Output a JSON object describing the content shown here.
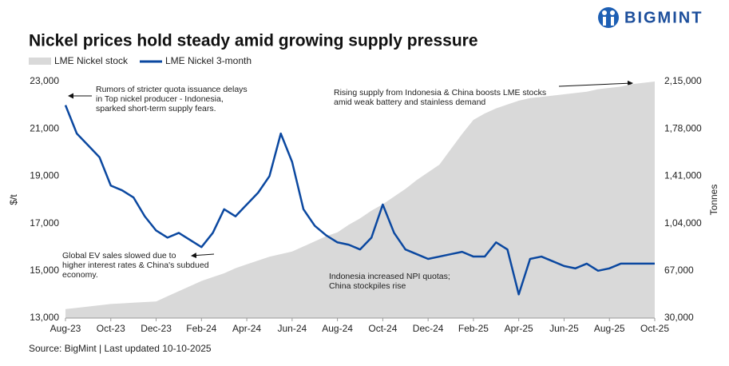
{
  "brand": "BIGMINT",
  "chart_data": {
    "type": "line",
    "title": "Nickel prices hold steady amid growing supply pressure",
    "categories": [
      "Aug-23",
      null,
      null,
      null,
      "Oct-23",
      null,
      null,
      null,
      "Dec-23",
      null,
      null,
      null,
      "Feb-24",
      null,
      null,
      null,
      "Apr-24",
      null,
      null,
      null,
      "Jun-24",
      null,
      null,
      null,
      "Aug-24",
      null,
      null,
      null,
      "Oct-24",
      null,
      null,
      null,
      "Dec-24",
      null,
      null,
      null,
      "Feb-25",
      null,
      null,
      null,
      "Apr-25",
      null,
      null,
      null,
      "Jun-25",
      null,
      null,
      null,
      "Aug-25",
      null,
      null,
      null,
      "Oct-25"
    ],
    "series": [
      {
        "name": "LME Nickel stock",
        "type": "area",
        "color": "#d9d9d9",
        "axis": "y2",
        "values": [
          37000,
          38000,
          39000,
          40000,
          41000,
          41500,
          42000,
          42500,
          43000,
          47000,
          51000,
          55000,
          59000,
          62000,
          65000,
          69000,
          72000,
          75000,
          78000,
          80000,
          82000,
          86000,
          90000,
          94000,
          97000,
          103000,
          108000,
          114000,
          119000,
          125000,
          131000,
          138000,
          144000,
          150000,
          162000,
          174000,
          185000,
          190000,
          194000,
          197000,
          200000,
          202000,
          203000,
          204000,
          205000,
          206000,
          207000,
          209000,
          210000,
          211000,
          213000,
          214000,
          215000
        ]
      },
      {
        "name": "LME Nickel 3-month",
        "type": "line",
        "color": "#0b48a0",
        "axis": "y",
        "values": [
          22000,
          20800,
          20300,
          19800,
          18600,
          18400,
          18100,
          17300,
          16700,
          16400,
          16600,
          16300,
          16000,
          16600,
          17600,
          17300,
          17800,
          18300,
          19000,
          20800,
          19600,
          17600,
          16900,
          16500,
          16200,
          16100,
          15900,
          16400,
          17800,
          16600,
          15900,
          15700,
          15500,
          15600,
          15700,
          15800,
          15600,
          15600,
          16200,
          15900,
          14000,
          15500,
          15600,
          15400,
          15200,
          15100,
          15300,
          15000,
          15100,
          15300,
          15300,
          15300,
          15300
        ]
      }
    ],
    "y_label": "$/t",
    "y2_label": "Tonnes",
    "ylim": [
      13000,
      23000
    ],
    "yticks": [
      {
        "value": 13000,
        "label": "13,000"
      },
      {
        "value": 15000,
        "label": "15,000"
      },
      {
        "value": 17000,
        "label": "17,000"
      },
      {
        "value": 19000,
        "label": "19,000"
      },
      {
        "value": 21000,
        "label": "21,000"
      },
      {
        "value": 23000,
        "label": "23,000"
      }
    ],
    "y2lim": [
      30000,
      215000
    ],
    "y2ticks": [
      {
        "value": 30000,
        "label": "30,000"
      },
      {
        "value": 67000,
        "label": "67,000"
      },
      {
        "value": 104000,
        "label": "1,04,000"
      },
      {
        "value": 141000,
        "label": "1,41,000"
      },
      {
        "value": 178000,
        "label": "1,78,000"
      },
      {
        "value": 215000,
        "label": "2,15,000"
      }
    ],
    "annotations": [
      [
        "Rumors of stricter quota issuance delays",
        "in Top nickel producer - Indonesia,",
        "sparked short-term supply fears."
      ],
      [
        "Global EV sales slowed due to",
        "higher interest rates & China's subdued",
        "economy."
      ],
      [
        "Indonesia increased NPI quotas;",
        "China stockpiles rise"
      ],
      [
        "Rising supply from Indonesia & China boosts LME stocks",
        "amid weak battery and stainless demand"
      ]
    ],
    "source": "Source: BigMint | Last updated 10-10-2025"
  }
}
